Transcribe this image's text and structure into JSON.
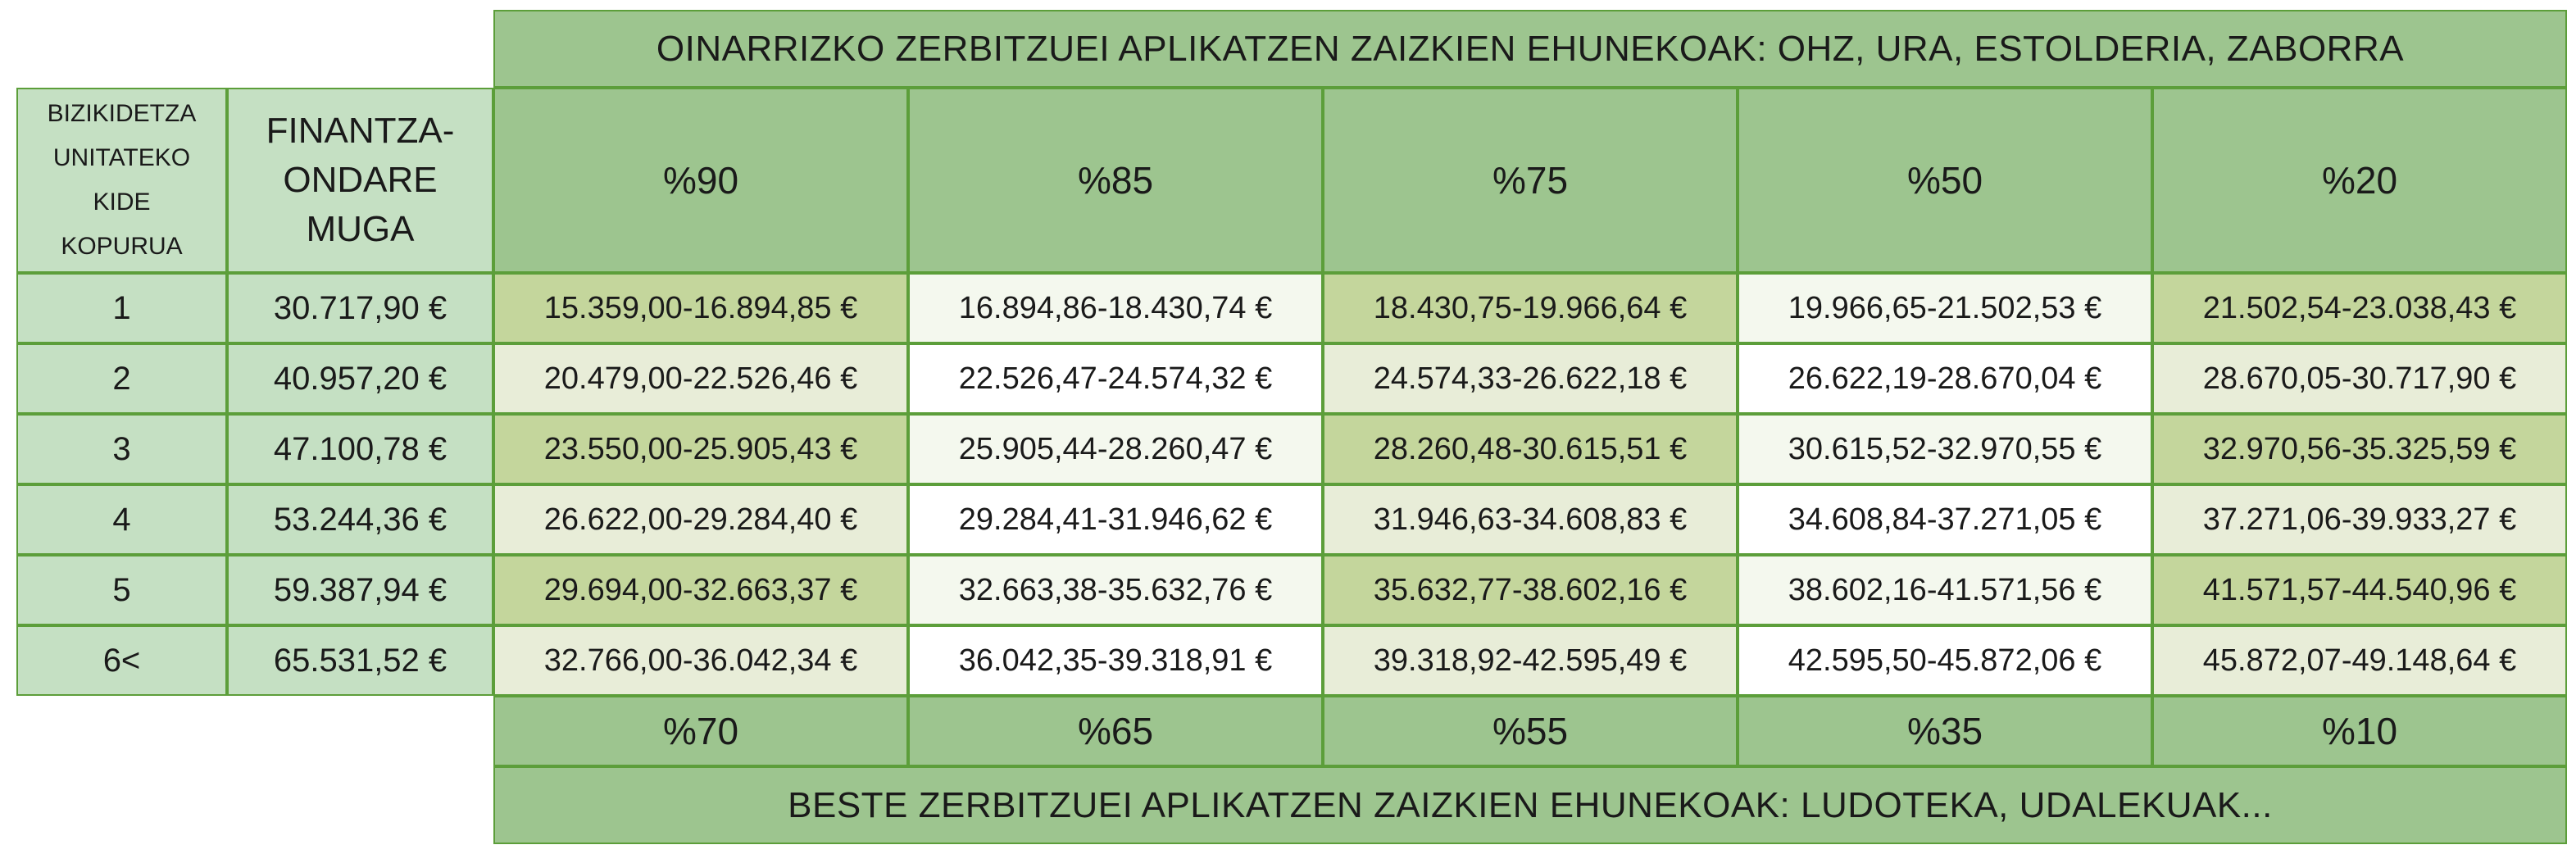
{
  "top_title": "OINARRIZKO ZERBITZUEI APLIKATZEN ZAIZKIEN EHUNEKOAK: OHZ, URA, ESTOLDERIA, ZABORRA",
  "bottom_title": "BESTE ZERBITZUEI APLIKATZEN ZAIZKIEN EHUNEKOAK: LUDOTEKA, UDALEKUAK...",
  "col_headers": {
    "members_lines": [
      "BIZIKIDETZA",
      "UNITATEKO",
      "KIDE",
      "KOPURUA"
    ],
    "limit_lines": [
      "FINANTZA-",
      "ONDARE",
      "MUGA"
    ]
  },
  "top_percentages": [
    "%90",
    "%85",
    "%75",
    "%50",
    "%20"
  ],
  "bottom_percentages": [
    "%70",
    "%65",
    "%55",
    "%35",
    "%10"
  ],
  "colors": {
    "header": "#9dc58f",
    "left_columns": "#c5e0c3",
    "olive": "#c4d69c",
    "light": "#e8edd8",
    "pale": "#f4f8ee",
    "border": "#5c9e3a"
  },
  "rows": [
    {
      "members": "1",
      "limit": "30.717,90 €",
      "ranges": [
        "15.359,00-16.894,85 €",
        "16.894,86-18.430,74 €",
        "18.430,75-19.966,64 €",
        "19.966,65-21.502,53 €",
        "21.502,54-23.038,43 €"
      ]
    },
    {
      "members": "2",
      "limit": "40.957,20 €",
      "ranges": [
        "20.479,00-22.526,46 €",
        "22.526,47-24.574,32 €",
        "24.574,33-26.622,18 €",
        "26.622,19-28.670,04 €",
        "28.670,05-30.717,90 €"
      ]
    },
    {
      "members": "3",
      "limit": "47.100,78 €",
      "ranges": [
        "23.550,00-25.905,43 €",
        "25.905,44-28.260,47 €",
        "28.260,48-30.615,51 €",
        "30.615,52-32.970,55 €",
        "32.970,56-35.325,59 €"
      ]
    },
    {
      "members": "4",
      "limit": "53.244,36 €",
      "ranges": [
        "26.622,00-29.284,40 €",
        "29.284,41-31.946,62 €",
        "31.946,63-34.608,83 €",
        "34.608,84-37.271,05 €",
        "37.271,06-39.933,27 €"
      ]
    },
    {
      "members": "5",
      "limit": "59.387,94 €",
      "ranges": [
        "29.694,00-32.663,37 €",
        "32.663,38-35.632,76 €",
        "35.632,77-38.602,16 €",
        "38.602,16-41.571,56 €",
        "41.571,57-44.540,96 €"
      ]
    },
    {
      "members": "6<",
      "limit": "65.531,52 €",
      "ranges": [
        "32.766,00-36.042,34 €",
        "36.042,35-39.318,91 €",
        "39.318,92-42.595,49 €",
        "42.595,50-45.872,06 €",
        "45.872,07-49.148,64 €"
      ]
    }
  ]
}
